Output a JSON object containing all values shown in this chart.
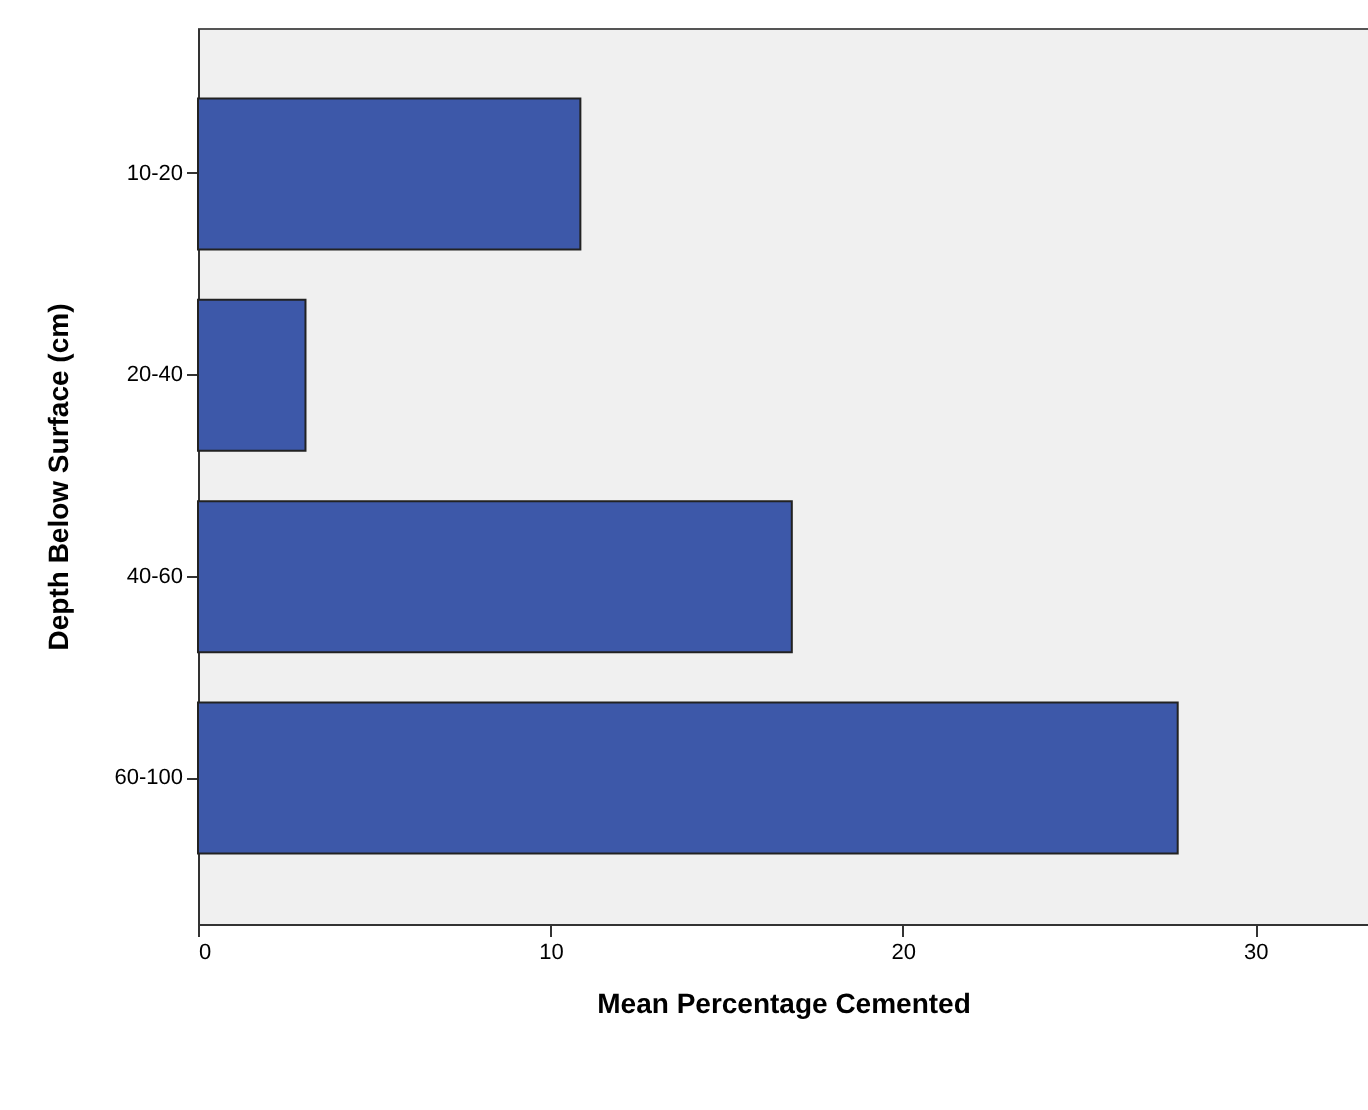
{
  "chart_data": {
    "type": "bar",
    "orientation": "horizontal",
    "xlabel": "Mean Percentage Cemented",
    "ylabel": "Depth Below Surface (cm)",
    "categories": [
      "10-20",
      "20-40",
      "40-60",
      "60-100"
    ],
    "values": [
      10.85,
      3.05,
      16.85,
      27.8
    ],
    "color": "#3d58a9",
    "xlim": [
      0,
      33.2
    ],
    "xticks": [
      0,
      10,
      20,
      30
    ],
    "grid": false
  }
}
